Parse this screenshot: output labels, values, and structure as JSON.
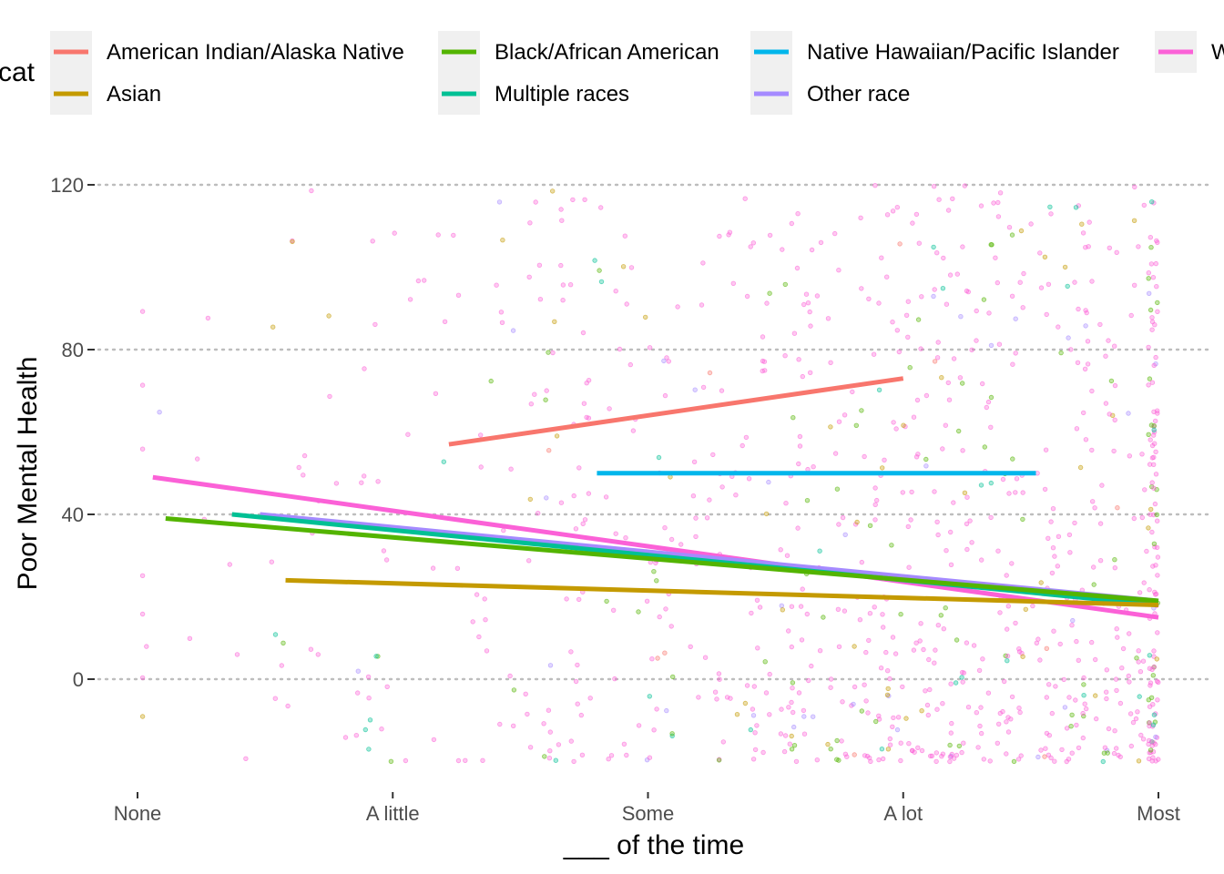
{
  "chart_data": {
    "type": "scatter",
    "title": "",
    "xlabel": "___ of the time",
    "ylabel": "Poor Mental Health",
    "x_categories": [
      "None",
      "A little",
      "Some",
      "A lot",
      "Most"
    ],
    "yticks": [
      0,
      40,
      80,
      120
    ],
    "ylim": [
      -27,
      130
    ],
    "xlim": [
      -0.15,
      4.15
    ],
    "grid": "horizontal dotted",
    "legend": {
      "title": "race_cat",
      "placement": "top",
      "entries": [
        {
          "label": "American Indian/Alaska Native",
          "color": "#F8766D"
        },
        {
          "label": "Asian",
          "color": "#C49A00"
        },
        {
          "label": "Black/African American",
          "color": "#53B400"
        },
        {
          "label": "Multiple races",
          "color": "#00C094"
        },
        {
          "label": "Native Hawaiian/Pacific Islander",
          "color": "#00B6EB"
        },
        {
          "label": "Other race",
          "color": "#A58AFF"
        },
        {
          "label": "White",
          "color": "#FB61D7"
        }
      ]
    },
    "fit_lines": [
      {
        "name": "American Indian/Alaska Native",
        "color": "#F8766D",
        "x": [
          1.22,
          3.0
        ],
        "y": [
          57,
          73
        ]
      },
      {
        "name": "Native Hawaiian/Pacific Islander",
        "color": "#00B6EB",
        "x": [
          1.8,
          3.52
        ],
        "y": [
          50,
          50
        ]
      },
      {
        "name": "White",
        "color": "#FB61D7",
        "x": [
          0.06,
          4.0
        ],
        "y": [
          49,
          15
        ]
      },
      {
        "name": "Other race",
        "color": "#A58AFF",
        "x": [
          0.48,
          4.0
        ],
        "y": [
          40,
          19
        ]
      },
      {
        "name": "Multiple races",
        "color": "#00C094",
        "x": [
          0.37,
          4.0
        ],
        "y": [
          40,
          18
        ]
      },
      {
        "name": "Black/African American",
        "color": "#53B400",
        "x": [
          0.11,
          4.0
        ],
        "y": [
          39,
          19
        ]
      },
      {
        "name": "Asian",
        "color": "#C49A00",
        "x": [
          0.58,
          4.0
        ],
        "y": [
          24,
          18
        ]
      }
    ],
    "points": {
      "note": "jittered individual responses, approximately",
      "series_weights": {
        "White": 0.78,
        "Black/African American": 0.09,
        "Multiple races": 0.04,
        "Asian": 0.04,
        "Other race": 0.04,
        "American Indian/Alaska Native": 0.01
      },
      "density_per_category": [
        8,
        35,
        110,
        200,
        170
      ],
      "y_range": [
        -20,
        120
      ],
      "count": 1000
    }
  }
}
